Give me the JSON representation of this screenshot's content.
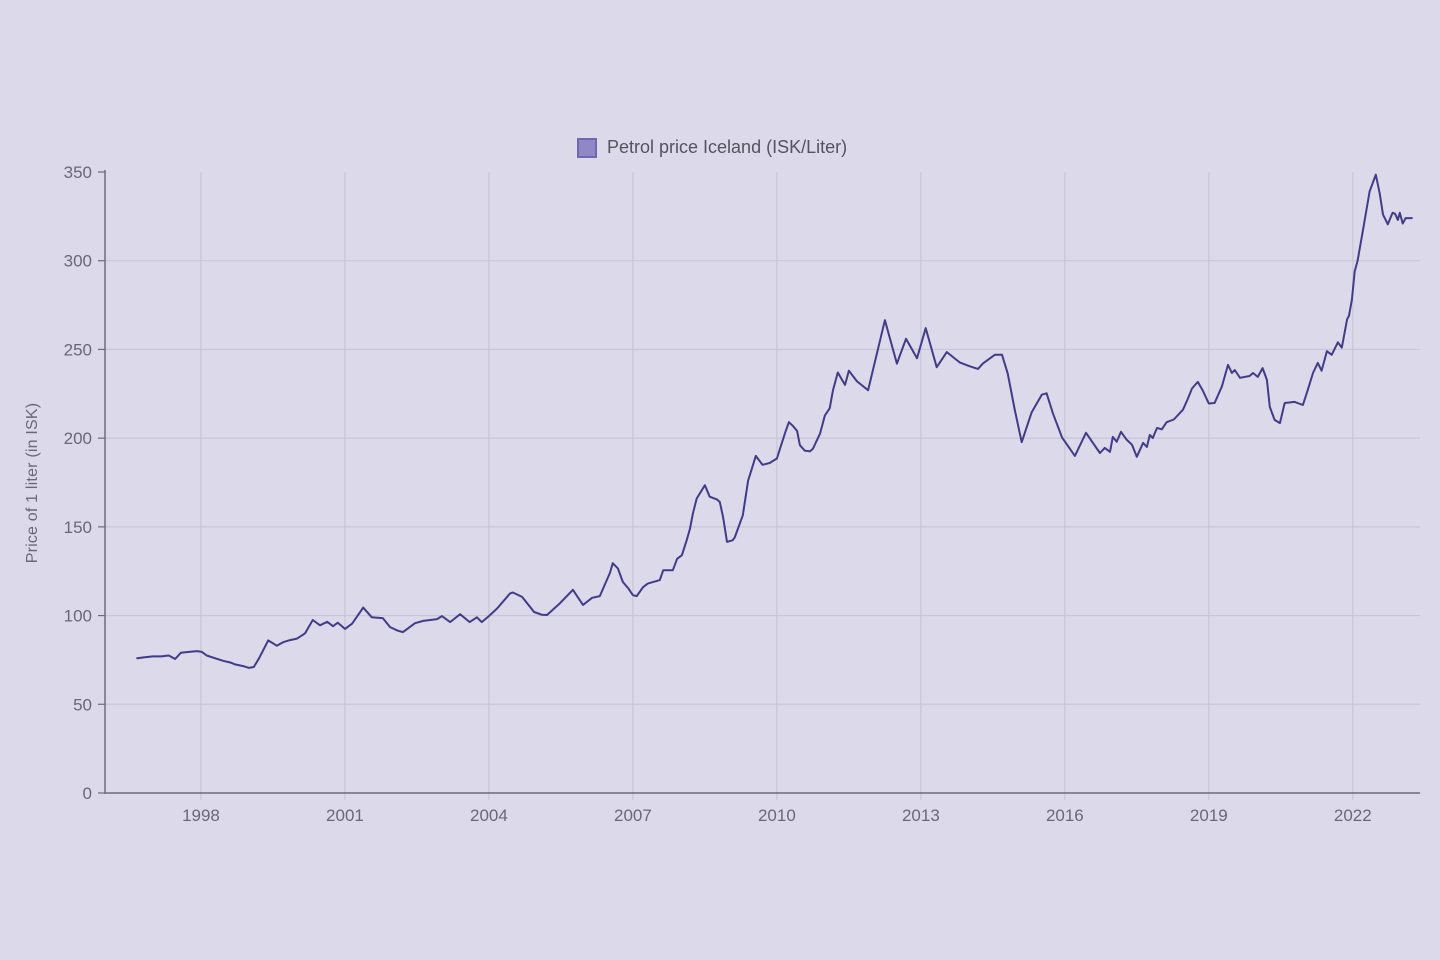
{
  "legend": {
    "label": "Petrol price Iceland (ISK/Liter)",
    "swatch_color": "#8f88c7",
    "swatch_border_color": "#6f68ae"
  },
  "y_axis": {
    "title": "Price of 1 liter (in ISK)"
  },
  "colors": {
    "background": "#dbd9ea",
    "gridline": "#c7c5d7",
    "axis": "#6e6c78",
    "tick_text": "#6b6875",
    "series_line": "#413c88"
  },
  "chart_data": {
    "type": "line",
    "title": "",
    "xlabel": "",
    "ylabel": "Price of 1 liter (in ISK)",
    "legend_position": "top-center",
    "grid": true,
    "x_range": [
      1996.0,
      2023.4
    ],
    "y_range": [
      0,
      350
    ],
    "x_ticks": [
      1998,
      2001,
      2004,
      2007,
      2010,
      2013,
      2016,
      2019,
      2022
    ],
    "y_ticks": [
      0,
      50,
      100,
      150,
      200,
      250,
      300,
      350
    ],
    "y_gridlines": [
      50,
      100,
      150,
      200,
      250,
      300
    ],
    "series": [
      {
        "name": "Petrol price Iceland (ISK/Liter)",
        "color": "#413c88",
        "points": [
          [
            1996.67,
            76
          ],
          [
            1996.83,
            76.5
          ],
          [
            1997.0,
            77
          ],
          [
            1997.17,
            77
          ],
          [
            1997.33,
            77.5
          ],
          [
            1997.46,
            75.5
          ],
          [
            1997.58,
            79
          ],
          [
            1997.75,
            79.5
          ],
          [
            1997.92,
            80
          ],
          [
            1998.02,
            79.5
          ],
          [
            1998.12,
            77.5
          ],
          [
            1998.29,
            76
          ],
          [
            1998.46,
            74.5
          ],
          [
            1998.62,
            73.5
          ],
          [
            1998.71,
            72.5
          ],
          [
            1998.88,
            71.5
          ],
          [
            1999.0,
            70.5
          ],
          [
            1999.1,
            71
          ],
          [
            1999.21,
            76
          ],
          [
            1999.4,
            86
          ],
          [
            1999.58,
            83
          ],
          [
            1999.71,
            85
          ],
          [
            1999.83,
            86
          ],
          [
            2000.0,
            87
          ],
          [
            2000.17,
            90
          ],
          [
            2000.33,
            97.5
          ],
          [
            2000.48,
            94.5
          ],
          [
            2000.63,
            96.5
          ],
          [
            2000.75,
            94
          ],
          [
            2000.85,
            96
          ],
          [
            2001.0,
            92.5
          ],
          [
            2001.15,
            95.5
          ],
          [
            2001.38,
            104.5
          ],
          [
            2001.56,
            99
          ],
          [
            2001.79,
            98.5
          ],
          [
            2001.94,
            93.5
          ],
          [
            2002.1,
            91.5
          ],
          [
            2002.21,
            90.7
          ],
          [
            2002.46,
            95.7
          ],
          [
            2002.63,
            97
          ],
          [
            2002.92,
            98
          ],
          [
            2003.02,
            99.7
          ],
          [
            2003.19,
            96.3
          ],
          [
            2003.4,
            100.8
          ],
          [
            2003.6,
            96.3
          ],
          [
            2003.75,
            99
          ],
          [
            2003.85,
            96.3
          ],
          [
            2004.0,
            99.7
          ],
          [
            2004.17,
            104
          ],
          [
            2004.44,
            112.5
          ],
          [
            2004.5,
            113
          ],
          [
            2004.69,
            110.5
          ],
          [
            2004.94,
            102
          ],
          [
            2005.1,
            100.5
          ],
          [
            2005.21,
            100.3
          ],
          [
            2005.48,
            107
          ],
          [
            2005.75,
            114.5
          ],
          [
            2005.96,
            106
          ],
          [
            2006.15,
            110
          ],
          [
            2006.31,
            111
          ],
          [
            2006.52,
            124
          ],
          [
            2006.58,
            129.5
          ],
          [
            2006.69,
            126.5
          ],
          [
            2006.79,
            119
          ],
          [
            2006.9,
            115.5
          ],
          [
            2007.0,
            111.5
          ],
          [
            2007.08,
            111
          ],
          [
            2007.21,
            116
          ],
          [
            2007.31,
            118
          ],
          [
            2007.56,
            120
          ],
          [
            2007.63,
            125.5
          ],
          [
            2007.83,
            125.5
          ],
          [
            2007.92,
            132
          ],
          [
            2008.02,
            134
          ],
          [
            2008.12,
            142.5
          ],
          [
            2008.19,
            149
          ],
          [
            2008.25,
            157.5
          ],
          [
            2008.33,
            166
          ],
          [
            2008.5,
            173.5
          ],
          [
            2008.6,
            167
          ],
          [
            2008.75,
            165.5
          ],
          [
            2008.81,
            164
          ],
          [
            2008.88,
            155.5
          ],
          [
            2008.96,
            141.5
          ],
          [
            2009.08,
            142.5
          ],
          [
            2009.12,
            144
          ],
          [
            2009.29,
            156.5
          ],
          [
            2009.4,
            176
          ],
          [
            2009.56,
            190
          ],
          [
            2009.7,
            185
          ],
          [
            2009.85,
            186
          ],
          [
            2010.0,
            188.5
          ],
          [
            2010.17,
            203
          ],
          [
            2010.25,
            209
          ],
          [
            2010.33,
            207
          ],
          [
            2010.42,
            204
          ],
          [
            2010.48,
            196
          ],
          [
            2010.58,
            193
          ],
          [
            2010.69,
            192.5
          ],
          [
            2010.75,
            194
          ],
          [
            2010.9,
            202.7
          ],
          [
            2011.0,
            212.8
          ],
          [
            2011.1,
            216.8
          ],
          [
            2011.17,
            227
          ],
          [
            2011.27,
            237
          ],
          [
            2011.42,
            230
          ],
          [
            2011.5,
            238
          ],
          [
            2011.67,
            232
          ],
          [
            2011.9,
            227
          ],
          [
            2012.25,
            266.5
          ],
          [
            2012.5,
            242
          ],
          [
            2012.69,
            256
          ],
          [
            2012.92,
            245
          ],
          [
            2013.1,
            262
          ],
          [
            2013.33,
            240
          ],
          [
            2013.54,
            248.5
          ],
          [
            2013.81,
            242.7
          ],
          [
            2014.02,
            240.5
          ],
          [
            2014.19,
            239
          ],
          [
            2014.29,
            242
          ],
          [
            2014.54,
            247
          ],
          [
            2014.69,
            247
          ],
          [
            2014.81,
            236.5
          ],
          [
            2014.96,
            215.6
          ],
          [
            2015.1,
            197.7
          ],
          [
            2015.31,
            214.6
          ],
          [
            2015.52,
            224.5
          ],
          [
            2015.62,
            225.3
          ],
          [
            2015.75,
            214
          ],
          [
            2015.94,
            200.4
          ],
          [
            2016.21,
            190
          ],
          [
            2016.44,
            203
          ],
          [
            2016.63,
            195.5
          ],
          [
            2016.73,
            191.6
          ],
          [
            2016.83,
            194.5
          ],
          [
            2016.94,
            192.3
          ],
          [
            2017.0,
            200.7
          ],
          [
            2017.08,
            198
          ],
          [
            2017.17,
            203.6
          ],
          [
            2017.29,
            199
          ],
          [
            2017.4,
            196.3
          ],
          [
            2017.5,
            189.5
          ],
          [
            2017.63,
            197.3
          ],
          [
            2017.71,
            195
          ],
          [
            2017.77,
            201.8
          ],
          [
            2017.83,
            200
          ],
          [
            2017.92,
            205.7
          ],
          [
            2018.02,
            205
          ],
          [
            2018.12,
            209
          ],
          [
            2018.27,
            210.5
          ],
          [
            2018.46,
            216
          ],
          [
            2018.56,
            222
          ],
          [
            2018.65,
            228
          ],
          [
            2018.77,
            231.7
          ],
          [
            2018.87,
            227
          ],
          [
            2019.0,
            219.5
          ],
          [
            2019.12,
            219.8
          ],
          [
            2019.27,
            229
          ],
          [
            2019.4,
            241.3
          ],
          [
            2019.48,
            236.7
          ],
          [
            2019.54,
            238.4
          ],
          [
            2019.65,
            234
          ],
          [
            2019.85,
            235
          ],
          [
            2019.92,
            236.7
          ],
          [
            2020.02,
            234.5
          ],
          [
            2020.12,
            239.5
          ],
          [
            2020.21,
            232.8
          ],
          [
            2020.27,
            217.6
          ],
          [
            2020.37,
            210.3
          ],
          [
            2020.48,
            208.5
          ],
          [
            2020.58,
            219.8
          ],
          [
            2020.79,
            220.4
          ],
          [
            2020.96,
            218.7
          ],
          [
            2021.06,
            227
          ],
          [
            2021.17,
            236.7
          ],
          [
            2021.27,
            242.4
          ],
          [
            2021.35,
            238
          ],
          [
            2021.46,
            249
          ],
          [
            2021.56,
            247
          ],
          [
            2021.69,
            254
          ],
          [
            2021.77,
            251
          ],
          [
            2021.88,
            267
          ],
          [
            2021.92,
            269
          ],
          [
            2021.98,
            278
          ],
          [
            2022.04,
            294
          ],
          [
            2022.1,
            300
          ],
          [
            2022.21,
            317
          ],
          [
            2022.35,
            339
          ],
          [
            2022.48,
            348.5
          ],
          [
            2022.56,
            338
          ],
          [
            2022.63,
            326
          ],
          [
            2022.73,
            320.5
          ],
          [
            2022.83,
            327
          ],
          [
            2022.88,
            326.5
          ],
          [
            2022.94,
            323
          ],
          [
            2022.98,
            327
          ],
          [
            2023.04,
            321
          ],
          [
            2023.1,
            324
          ],
          [
            2023.23,
            324
          ]
        ]
      }
    ]
  }
}
